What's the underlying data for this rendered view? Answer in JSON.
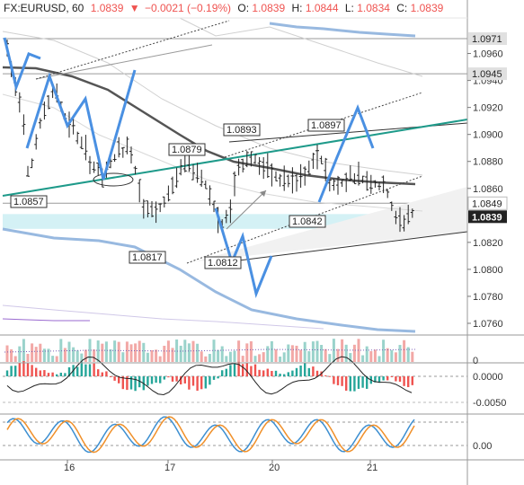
{
  "header": {
    "symbol": "FX:EURUSD, 60",
    "last": "1.0839",
    "arrow": "▼",
    "change": "−0.0021 (−0.19%)",
    "o_label": "O:",
    "o": "1.0839",
    "h_label": "H:",
    "h": "1.0844",
    "l_label": "L:",
    "l": "1.0834",
    "c_label": "C:",
    "c": "1.0839"
  },
  "colors": {
    "up": "#26a69a",
    "down": "#ef5350",
    "bar": "#222222",
    "trend_teal": "#1e9a8a",
    "projection_blue": "#4a90e2",
    "band_blue": "#7ea7d8",
    "ma_gray": "#555555",
    "zone_cyan": "#cdeef3",
    "stoch_blue": "#3d8fd1",
    "stoch_orange": "#f0902a"
  },
  "price_axis": {
    "ticks": [
      "1.0960",
      "1.0940",
      "1.0920",
      "1.0900",
      "1.0880",
      "1.0860",
      "1.0820",
      "1.0800",
      "1.0780",
      "1.0760"
    ],
    "badges": [
      {
        "label": "1.0971",
        "style": "gray"
      },
      {
        "label": "1.0945",
        "style": "gray"
      },
      {
        "label": "1.0849",
        "style": "light"
      },
      {
        "label": "1.0839",
        "style": "dark"
      }
    ]
  },
  "time_axis": {
    "labels": [
      "16",
      "17",
      "20",
      "21"
    ]
  },
  "chart_data": [
    {
      "type": "line",
      "title": "",
      "ylim": [
        1.0752,
        1.0985
      ],
      "price_labels": [
        {
          "text": "1.0857",
          "price": 1.0857
        },
        {
          "text": "1.0817",
          "price": 1.0817
        },
        {
          "text": "1.0812",
          "price": 1.0812
        },
        {
          "text": "1.0879",
          "price": 1.0879
        },
        {
          "text": "1.0893",
          "price": 1.0893
        },
        {
          "text": "1.0897",
          "price": 1.0897
        },
        {
          "text": "1.0842",
          "price": 1.0842
        }
      ],
      "horizontal_levels": [
        1.0971,
        1.0945,
        1.0849
      ],
      "support_zone": [
        1.083,
        1.0841
      ]
    },
    {
      "type": "bar",
      "title": "",
      "yticks": [
        "0"
      ]
    },
    {
      "type": "bar",
      "title": "",
      "yticks": [
        "0.0000",
        "-0.0050"
      ]
    },
    {
      "type": "line",
      "title": "",
      "yticks": [
        "0.00"
      ]
    }
  ]
}
